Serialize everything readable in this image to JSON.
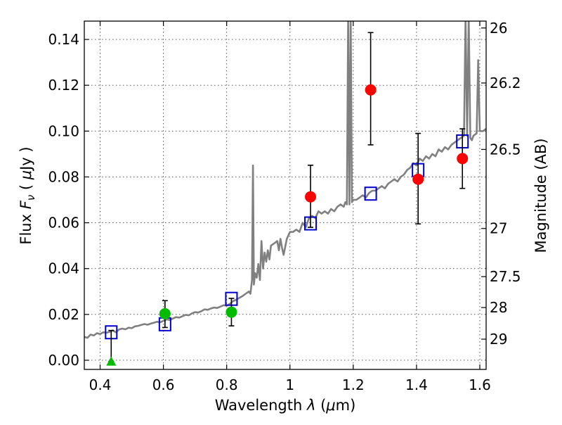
{
  "chart_data": {
    "type": "scatter",
    "xlabel": "Wavelength  λ (μm)",
    "ylabel": "Flux  F_ν  ( μJy )",
    "ylabel_right": "Magnitude (AB)",
    "xlim": [
      0.35,
      1.62
    ],
    "ylim": [
      -0.004,
      0.148
    ],
    "grid": true,
    "x_ticks": [
      0.4,
      0.6,
      0.8,
      1.0,
      1.2,
      1.4,
      1.6
    ],
    "x_tick_labels": [
      "0.4",
      "0.6",
      "0.8",
      "1",
      "1.2",
      "1.4",
      "1.6"
    ],
    "y_ticks": [
      0.0,
      0.02,
      0.04,
      0.06,
      0.08,
      0.1,
      0.12,
      0.14
    ],
    "y_tick_labels": [
      "0.00",
      "0.02",
      "0.04",
      "0.06",
      "0.08",
      "0.10",
      "0.12",
      "0.14"
    ],
    "right_axis_ticks": [
      {
        "label": "26",
        "flux": 0.145
      },
      {
        "label": "26.2",
        "flux": 0.121
      },
      {
        "label": "26.5",
        "flux": 0.092
      },
      {
        "label": "27",
        "flux": 0.0575
      },
      {
        "label": "27.5",
        "flux": 0.0365
      },
      {
        "label": "28",
        "flux": 0.023
      },
      {
        "label": "29",
        "flux": 0.0092
      }
    ],
    "colors": {
      "sed_model": "#808080",
      "model_photometry": "#0000cc",
      "observed_green": "#00bb00",
      "observed_red": "#ff0000",
      "errorbar": "#000000"
    },
    "series": [
      {
        "kind": "sed_line",
        "points": [
          [
            0.35,
            0.0102
          ],
          [
            0.36,
            0.0098
          ],
          [
            0.37,
            0.0112
          ],
          [
            0.38,
            0.0108
          ],
          [
            0.39,
            0.0118
          ],
          [
            0.4,
            0.0114
          ],
          [
            0.41,
            0.0122
          ],
          [
            0.42,
            0.012
          ],
          [
            0.43,
            0.0124
          ],
          [
            0.44,
            0.013
          ],
          [
            0.45,
            0.0122
          ],
          [
            0.46,
            0.0134
          ],
          [
            0.47,
            0.0138
          ],
          [
            0.48,
            0.0135
          ],
          [
            0.49,
            0.0142
          ],
          [
            0.5,
            0.014
          ],
          [
            0.51,
            0.0148
          ],
          [
            0.52,
            0.015
          ],
          [
            0.53,
            0.0154
          ],
          [
            0.54,
            0.0158
          ],
          [
            0.55,
            0.0155
          ],
          [
            0.56,
            0.016
          ],
          [
            0.57,
            0.0164
          ],
          [
            0.58,
            0.0168
          ],
          [
            0.59,
            0.0166
          ],
          [
            0.6,
            0.0172
          ],
          [
            0.61,
            0.0178
          ],
          [
            0.62,
            0.0176
          ],
          [
            0.63,
            0.0182
          ],
          [
            0.64,
            0.0188
          ],
          [
            0.65,
            0.0186
          ],
          [
            0.66,
            0.0192
          ],
          [
            0.67,
            0.0198
          ],
          [
            0.68,
            0.0196
          ],
          [
            0.69,
            0.0204
          ],
          [
            0.7,
            0.021
          ],
          [
            0.71,
            0.0208
          ],
          [
            0.72,
            0.0214
          ],
          [
            0.73,
            0.0222
          ],
          [
            0.74,
            0.022
          ],
          [
            0.75,
            0.0226
          ],
          [
            0.76,
            0.023
          ],
          [
            0.77,
            0.0228
          ],
          [
            0.78,
            0.0234
          ],
          [
            0.79,
            0.024
          ],
          [
            0.8,
            0.0238
          ],
          [
            0.81,
            0.0246
          ],
          [
            0.82,
            0.0258
          ],
          [
            0.83,
            0.0264
          ],
          [
            0.84,
            0.0272
          ],
          [
            0.85,
            0.028
          ],
          [
            0.86,
            0.029
          ],
          [
            0.87,
            0.03
          ],
          [
            0.875,
            0.029
          ],
          [
            0.88,
            0.035
          ],
          [
            0.883,
            0.085
          ],
          [
            0.886,
            0.033
          ],
          [
            0.89,
            0.038
          ],
          [
            0.895,
            0.036
          ],
          [
            0.9,
            0.042
          ],
          [
            0.905,
            0.035
          ],
          [
            0.91,
            0.052
          ],
          [
            0.915,
            0.04
          ],
          [
            0.92,
            0.047
          ],
          [
            0.925,
            0.043
          ],
          [
            0.93,
            0.048
          ],
          [
            0.935,
            0.044
          ],
          [
            0.94,
            0.05
          ],
          [
            0.95,
            0.051
          ],
          [
            0.96,
            0.052
          ],
          [
            0.965,
            0.048
          ],
          [
            0.97,
            0.053
          ],
          [
            0.975,
            0.049
          ],
          [
            0.98,
            0.046
          ],
          [
            0.99,
            0.053
          ],
          [
            1.0,
            0.056
          ],
          [
            1.01,
            0.056
          ],
          [
            1.02,
            0.057
          ],
          [
            1.03,
            0.056
          ],
          [
            1.04,
            0.06
          ],
          [
            1.05,
            0.058
          ],
          [
            1.06,
            0.062
          ],
          [
            1.07,
            0.063
          ],
          [
            1.08,
            0.062
          ],
          [
            1.09,
            0.065
          ],
          [
            1.1,
            0.064
          ],
          [
            1.11,
            0.065
          ],
          [
            1.12,
            0.064
          ],
          [
            1.13,
            0.066
          ],
          [
            1.14,
            0.065
          ],
          [
            1.15,
            0.067
          ],
          [
            1.16,
            0.068
          ],
          [
            1.17,
            0.067
          ],
          [
            1.175,
            0.069
          ],
          [
            1.18,
            0.068
          ],
          [
            1.184,
            0.15
          ],
          [
            1.188,
            0.068
          ],
          [
            1.192,
            0.15
          ],
          [
            1.196,
            0.069
          ],
          [
            1.2,
            0.07
          ],
          [
            1.21,
            0.07
          ],
          [
            1.22,
            0.071
          ],
          [
            1.23,
            0.072
          ],
          [
            1.24,
            0.071
          ],
          [
            1.25,
            0.073
          ],
          [
            1.26,
            0.074
          ],
          [
            1.27,
            0.074
          ],
          [
            1.28,
            0.075
          ],
          [
            1.29,
            0.076
          ],
          [
            1.3,
            0.075
          ],
          [
            1.31,
            0.077
          ],
          [
            1.32,
            0.078
          ],
          [
            1.33,
            0.079
          ],
          [
            1.34,
            0.078
          ],
          [
            1.35,
            0.08
          ],
          [
            1.36,
            0.081
          ],
          [
            1.37,
            0.083
          ],
          [
            1.38,
            0.084
          ],
          [
            1.39,
            0.086
          ],
          [
            1.4,
            0.085
          ],
          [
            1.41,
            0.088
          ],
          [
            1.42,
            0.087
          ],
          [
            1.43,
            0.089
          ],
          [
            1.44,
            0.088
          ],
          [
            1.45,
            0.09
          ],
          [
            1.46,
            0.089
          ],
          [
            1.47,
            0.092
          ],
          [
            1.48,
            0.091
          ],
          [
            1.49,
            0.093
          ],
          [
            1.5,
            0.092
          ],
          [
            1.51,
            0.094
          ],
          [
            1.52,
            0.095
          ],
          [
            1.53,
            0.096
          ],
          [
            1.54,
            0.097
          ],
          [
            1.55,
            0.098
          ],
          [
            1.555,
            0.15
          ],
          [
            1.56,
            0.098
          ],
          [
            1.565,
            0.15
          ],
          [
            1.57,
            0.097
          ],
          [
            1.575,
            0.096
          ],
          [
            1.58,
            0.098
          ],
          [
            1.59,
            0.099
          ],
          [
            1.595,
            0.131
          ],
          [
            1.6,
            0.1
          ],
          [
            1.61,
            0.1
          ],
          [
            1.62,
            0.101
          ]
        ]
      },
      {
        "kind": "model_photometry",
        "points": [
          [
            0.435,
            0.0122
          ],
          [
            0.605,
            0.0157
          ],
          [
            0.815,
            0.0268
          ],
          [
            1.065,
            0.0597
          ],
          [
            1.255,
            0.0727
          ],
          [
            1.405,
            0.083
          ],
          [
            1.545,
            0.0955
          ]
        ]
      },
      {
        "kind": "observed",
        "points": [
          {
            "x": 0.435,
            "y": -0.0005,
            "err_low": -0.0005,
            "err_high": 0.013,
            "color": "green",
            "marker": "triangle"
          },
          {
            "x": 0.605,
            "y": 0.0203,
            "err_low": 0.0143,
            "err_high": 0.026,
            "color": "green",
            "marker": "circle"
          },
          {
            "x": 0.815,
            "y": 0.021,
            "err_low": 0.015,
            "err_high": 0.027,
            "color": "green",
            "marker": "circle"
          },
          {
            "x": 1.065,
            "y": 0.0713,
            "err_low": 0.058,
            "err_high": 0.0851,
            "color": "red",
            "marker": "circle"
          },
          {
            "x": 1.255,
            "y": 0.118,
            "err_low": 0.094,
            "err_high": 0.143,
            "color": "red",
            "marker": "circle"
          },
          {
            "x": 1.405,
            "y": 0.079,
            "err_low": 0.0595,
            "err_high": 0.099,
            "color": "red",
            "marker": "circle"
          },
          {
            "x": 1.545,
            "y": 0.088,
            "err_low": 0.075,
            "err_high": 0.101,
            "color": "red",
            "marker": "circle"
          }
        ]
      }
    ]
  }
}
